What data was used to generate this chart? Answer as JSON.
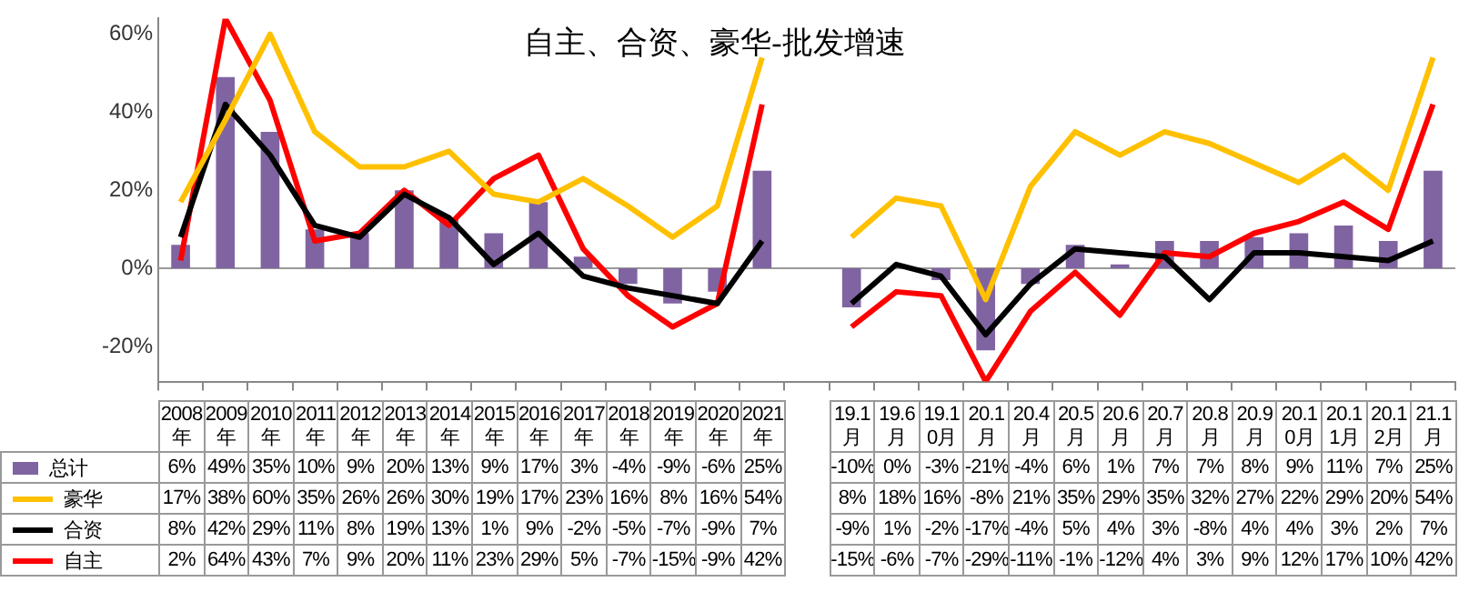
{
  "chart_data": {
    "type": "bar",
    "title": "自主、合资、豪华-批发增速",
    "categories": [
      "2008年",
      "2009年",
      "2010年",
      "2011年",
      "2012年",
      "2013年",
      "2014年",
      "2015年",
      "2016年",
      "2017年",
      "2018年",
      "2019年",
      "2020年",
      "2021年",
      null,
      "19.1月",
      "19.6月",
      "19.10月",
      "20.1月",
      "20.4月",
      "20.5月",
      "20.6月",
      "20.7月",
      "20.8月",
      "20.9月",
      "20.10月",
      "20.11月",
      "20.12月",
      "21.1月"
    ],
    "ylim": [
      -29,
      64
    ],
    "yticks": [
      {
        "value": -20,
        "label": "-20%"
      },
      {
        "value": 0,
        "label": "0%"
      },
      {
        "value": 20,
        "label": "20%"
      },
      {
        "value": 40,
        "label": "40%"
      },
      {
        "value": 60,
        "label": "60%"
      }
    ],
    "grid": false,
    "tick_labels": "y",
    "ref_lines": [
      {
        "axis": "y",
        "value": 0,
        "color": "#999999"
      }
    ],
    "legend": "bottom",
    "marker": "none",
    "data_labels": false,
    "series": [
      {
        "name": "总计",
        "color": "#8064a2",
        "values": [
          6,
          49,
          35,
          10,
          9,
          20,
          13,
          9,
          17,
          3,
          -4,
          -9,
          -6,
          25,
          null,
          -10,
          0,
          -3,
          -21,
          -4,
          6,
          1,
          7,
          7,
          8,
          9,
          11,
          7,
          25
        ],
        "value_labels": [
          "6%",
          "49%",
          "35%",
          "10%",
          "9%",
          "20%",
          "13%",
          "9%",
          "17%",
          "3%",
          "-4%",
          "-9%",
          "-6%",
          "25%",
          null,
          "-10%",
          "0%",
          "-3%",
          "-21%",
          "-4%",
          "6%",
          "1%",
          "7%",
          "7%",
          "8%",
          "9%",
          "11%",
          "7%",
          "25%"
        ]
      },
      {
        "name": "豪华",
        "type": "line",
        "color": "#ffc000",
        "values": [
          17,
          38,
          60,
          35,
          26,
          26,
          30,
          19,
          17,
          23,
          16,
          8,
          16,
          54,
          null,
          8,
          18,
          16,
          -8,
          21,
          35,
          29,
          35,
          32,
          27,
          22,
          29,
          20,
          54
        ],
        "value_labels": [
          "17%",
          "38%",
          "60%",
          "35%",
          "26%",
          "26%",
          "30%",
          "19%",
          "17%",
          "23%",
          "16%",
          "8%",
          "16%",
          "54%",
          null,
          "8%",
          "18%",
          "16%",
          "-8%",
          "21%",
          "35%",
          "29%",
          "35%",
          "32%",
          "27%",
          "22%",
          "29%",
          "20%",
          "54%"
        ]
      },
      {
        "name": "合资",
        "type": "line",
        "color": "#000000",
        "values": [
          8,
          42,
          29,
          11,
          8,
          19,
          13,
          1,
          9,
          -2,
          -5,
          -7,
          -9,
          7,
          null,
          -9,
          1,
          -2,
          -17,
          -4,
          5,
          4,
          3,
          -8,
          4,
          4,
          3,
          2,
          7
        ],
        "value_labels": [
          "8%",
          "42%",
          "29%",
          "11%",
          "8%",
          "19%",
          "13%",
          "1%",
          "9%",
          "-2%",
          "-5%",
          "-7%",
          "-9%",
          "7%",
          null,
          "-9%",
          "1%",
          "-2%",
          "-17%",
          "-4%",
          "5%",
          "4%",
          "3%",
          "-8%",
          "4%",
          "4%",
          "3%",
          "2%",
          "7%"
        ]
      },
      {
        "name": "自主",
        "type": "line",
        "color": "#ff0000",
        "values": [
          2,
          64,
          43,
          7,
          9,
          20,
          11,
          23,
          29,
          5,
          -7,
          -15,
          -9,
          42,
          null,
          -15,
          -6,
          -7,
          -29,
          -11,
          -1,
          -12,
          4,
          3,
          9,
          12,
          17,
          10,
          42
        ],
        "value_labels": [
          "2%",
          "64%",
          "43%",
          "7%",
          "9%",
          "20%",
          "11%",
          "23%",
          "29%",
          "5%",
          "-7%",
          "-15%",
          "-9%",
          "42%",
          null,
          "-15%",
          "-6%",
          "-7%",
          "-29%",
          "-11%",
          "-1%",
          "-12%",
          "4%",
          "3%",
          "9%",
          "12%",
          "17%",
          "10%",
          "42%"
        ]
      }
    ]
  }
}
